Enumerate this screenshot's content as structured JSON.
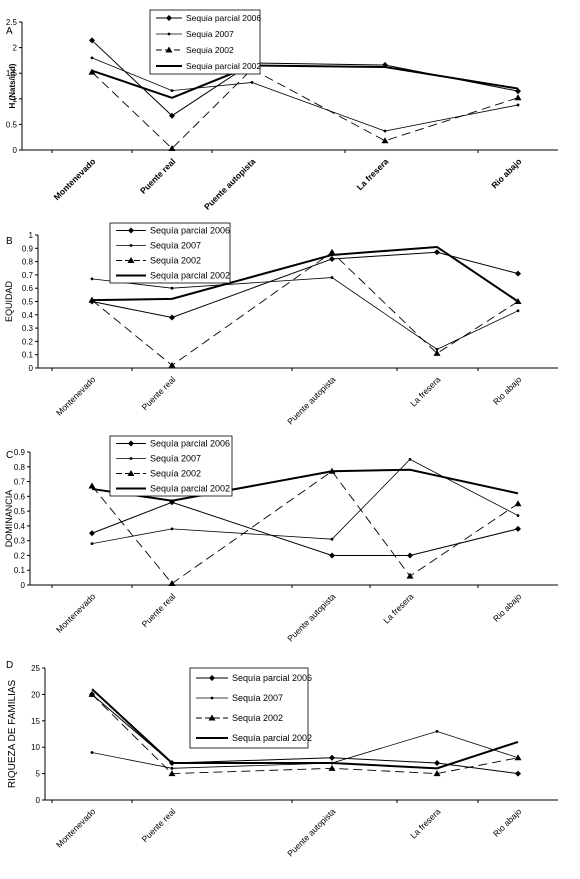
{
  "chart_data": [
    {
      "type": "line",
      "panel_label": "A",
      "ylabel": "H (Nats/ind)",
      "ylim": [
        0,
        2.5
      ],
      "yticks": [
        "0",
        "0.5",
        "1",
        "1.5",
        "2",
        "2.5"
      ],
      "categories": [
        "Montenevado",
        "Puente real",
        "Puente autopista",
        "La fresera",
        "Rio abajo"
      ],
      "legend_position": "top-right",
      "series": [
        {
          "name": "Sequia parcial 2006",
          "values": [
            2.14,
            0.67,
            1.7,
            1.66,
            1.15
          ]
        },
        {
          "name": "Sequia 2007",
          "values": [
            1.8,
            1.16,
            1.32,
            0.37,
            0.88
          ]
        },
        {
          "name": "Sequia 2002",
          "values": [
            1.52,
            0.03,
            1.58,
            0.18,
            1.02
          ]
        },
        {
          "name": "Sequia parcial 2002",
          "values": [
            1.55,
            1.02,
            1.65,
            1.62,
            1.2
          ]
        }
      ]
    },
    {
      "type": "line",
      "panel_label": "B",
      "ylabel": "EQUIDAD",
      "ylim": [
        0,
        1
      ],
      "yticks": [
        "0",
        "0.1",
        "0.2",
        "0.3",
        "0.4",
        "0.5",
        "0.6",
        "0.7",
        "0.8",
        "0.9",
        "1"
      ],
      "categories": [
        "Montenevado",
        "Puente real",
        "Puente autopista",
        "La fresera",
        "Rio abajo"
      ],
      "legend_position": "top-left",
      "series": [
        {
          "name": "Sequía parcial 2006",
          "values": [
            0.5,
            0.38,
            0.82,
            0.87,
            0.71
          ]
        },
        {
          "name": "Sequía 2007",
          "values": [
            0.67,
            0.6,
            0.68,
            0.14,
            0.43
          ]
        },
        {
          "name": "Sequía 2002",
          "values": [
            0.51,
            0.02,
            0.87,
            0.11,
            0.5
          ]
        },
        {
          "name": "Sequía parcial 2002",
          "values": [
            0.51,
            0.52,
            0.85,
            0.91,
            0.5
          ]
        }
      ]
    },
    {
      "type": "line",
      "panel_label": "C",
      "ylabel": "DOMINANCIA",
      "ylim": [
        0,
        0.9
      ],
      "yticks": [
        "0",
        "0.1",
        "0.2",
        "0.3",
        "0.4",
        "0.5",
        "0.6",
        "0.7",
        "0.8",
        "0.9"
      ],
      "categories": [
        "Montenevado",
        "Puente real",
        "Puente autopista",
        "La fresera",
        "Rio abajo"
      ],
      "legend_position": "top-left",
      "series": [
        {
          "name": "Sequía parcial 2006",
          "values": [
            0.35,
            0.56,
            0.2,
            0.2,
            0.38
          ]
        },
        {
          "name": "Sequía 2007",
          "values": [
            0.28,
            0.38,
            0.31,
            0.85,
            0.47
          ]
        },
        {
          "name": "Sequía 2002",
          "values": [
            0.67,
            0.01,
            0.77,
            0.06,
            0.55
          ]
        },
        {
          "name": "Sequía parcial 2002",
          "values": [
            0.65,
            0.57,
            0.77,
            0.78,
            0.62
          ]
        }
      ]
    },
    {
      "type": "line",
      "panel_label": "D",
      "ylabel": "RIQUEZA DE FAMILIAS",
      "ylim": [
        0,
        25
      ],
      "yticks": [
        "0",
        "5",
        "10",
        "15",
        "20",
        "25"
      ],
      "categories": [
        "Montenevado",
        "Puente real",
        "Puente autopista",
        "La fresera",
        "Rio abajo"
      ],
      "legend_position": "top-center",
      "series": [
        {
          "name": "Sequía parcial 2006",
          "values": [
            20,
            7,
            8,
            7,
            5
          ]
        },
        {
          "name": "Sequía 2007",
          "values": [
            9,
            6,
            7,
            13,
            8
          ]
        },
        {
          "name": "Sequía 2002",
          "values": [
            20,
            5,
            6,
            5,
            8
          ]
        },
        {
          "name": "Sequía parcial 2002",
          "values": [
            21,
            7,
            7,
            6,
            11
          ]
        }
      ]
    }
  ]
}
